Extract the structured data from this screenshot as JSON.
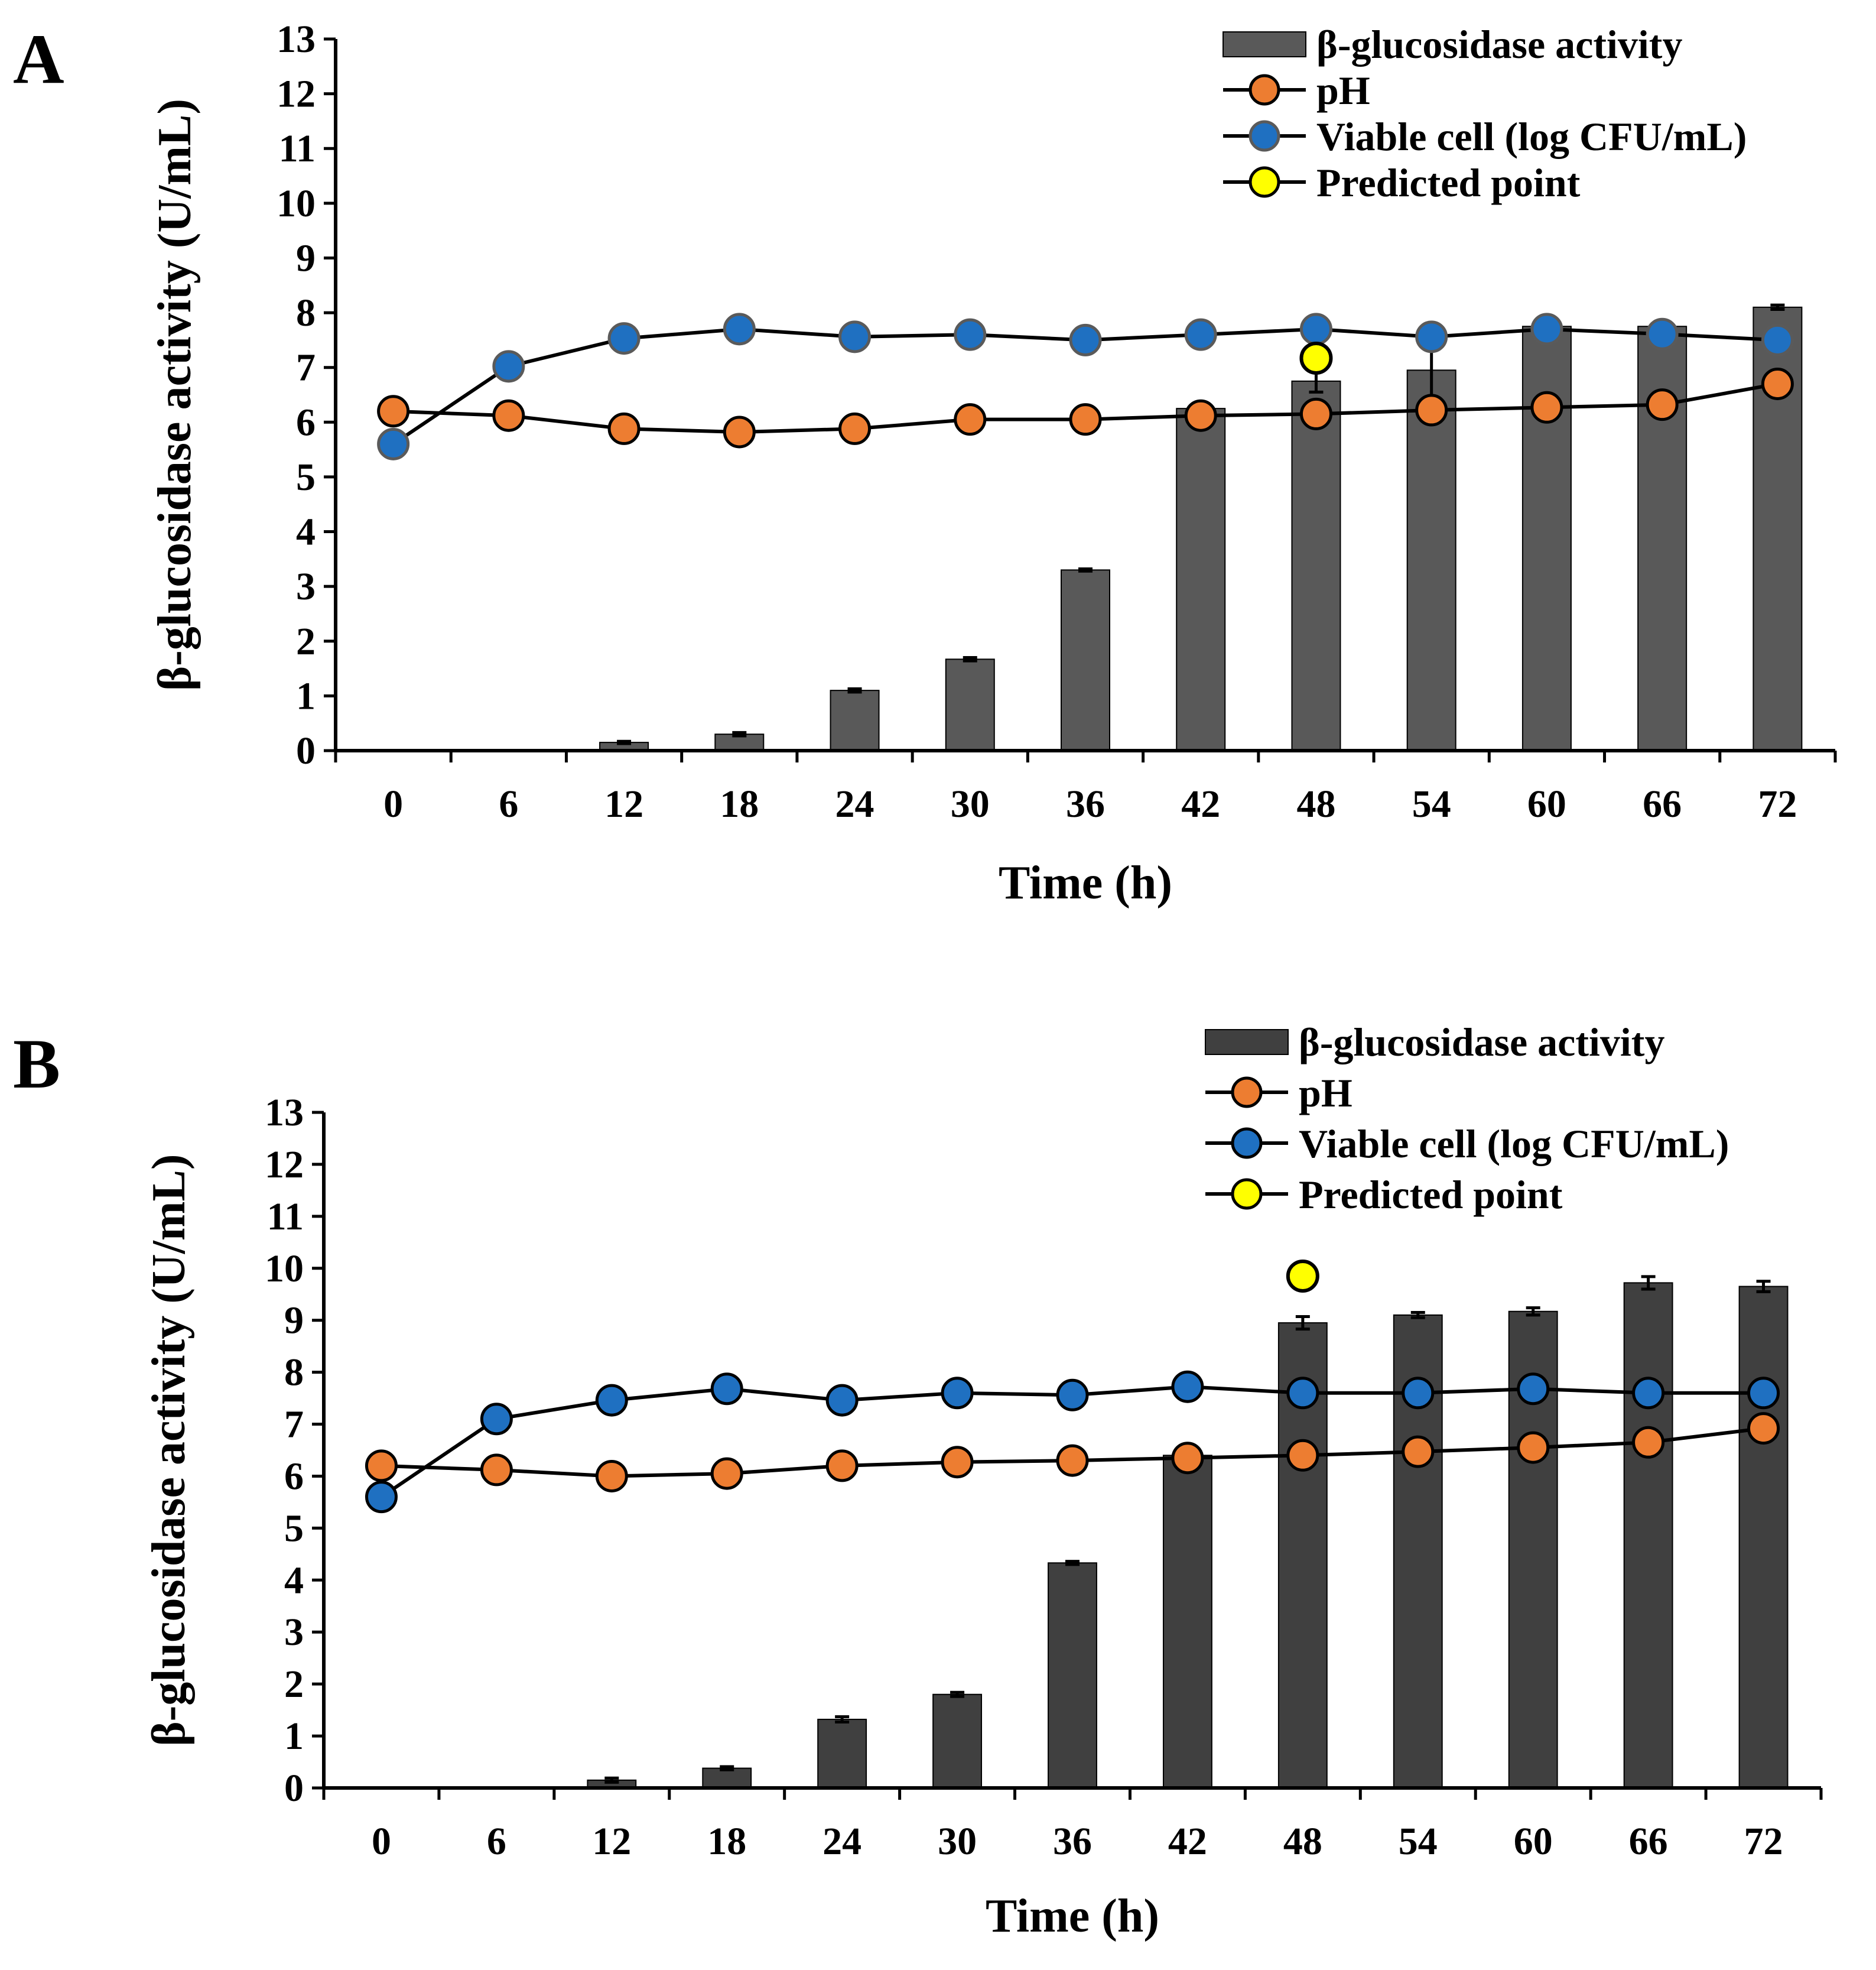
{
  "chart_data": [
    {
      "type": "bar",
      "panel": "A",
      "xlabel": "Time  (h)",
      "ylabel": "β-glucosidase activity (U/mL)",
      "ylim": [
        0,
        13
      ],
      "yticks": [
        "0",
        "1",
        "2",
        "3",
        "4",
        "5",
        "6",
        "7",
        "8",
        "9",
        "10",
        "11",
        "12",
        "13"
      ],
      "categories": [
        "0",
        "6",
        "12",
        "18",
        "24",
        "30",
        "36",
        "42",
        "48",
        "54",
        "60",
        "66",
        "72"
      ],
      "bar_color": "#595959",
      "series": [
        {
          "name": "β-glucosidase activity",
          "kind": "bar",
          "values": [
            0,
            0,
            0.15,
            0.3,
            1.1,
            1.67,
            3.3,
            6.25,
            6.75,
            6.95,
            7.75,
            7.75,
            8.1
          ],
          "errors": [
            0,
            0,
            0.02,
            0.03,
            0.03,
            0.03,
            0.02,
            0.02,
            0.2,
            0.6,
            0.02,
            0.02,
            0.04
          ]
        },
        {
          "name": "pH",
          "kind": "line",
          "color": "#ED7D31",
          "values": [
            6.2,
            6.12,
            5.88,
            5.82,
            5.88,
            6.05,
            6.05,
            6.12,
            6.15,
            6.22,
            6.27,
            6.32,
            6.7
          ]
        },
        {
          "name": "Viable cell (log CFU/mL)",
          "kind": "line",
          "color": "#1F70C1",
          "values": [
            5.6,
            7.02,
            7.53,
            7.7,
            7.56,
            7.6,
            7.5,
            7.6,
            7.7,
            7.56,
            7.7,
            7.61,
            7.5
          ]
        },
        {
          "name": "Predicted point",
          "kind": "point",
          "color": "#FFFF00",
          "x": "48",
          "value": 7.17
        }
      ],
      "legend": "top-right"
    },
    {
      "type": "bar",
      "panel": "B",
      "xlabel": "Time  (h)",
      "ylabel": "β-glucosidase activity (U/mL)",
      "ylim": [
        0,
        13
      ],
      "yticks": [
        "0",
        "1",
        "2",
        "3",
        "4",
        "5",
        "6",
        "7",
        "8",
        "9",
        "10",
        "11",
        "12",
        "13"
      ],
      "categories": [
        "0",
        "6",
        "12",
        "18",
        "24",
        "30",
        "36",
        "42",
        "48",
        "54",
        "60",
        "66",
        "72"
      ],
      "bar_color": "#404040",
      "series": [
        {
          "name": "β-glucosidase activity",
          "kind": "bar",
          "values": [
            0,
            0,
            0.15,
            0.38,
            1.32,
            1.8,
            4.33,
            6.4,
            8.95,
            9.1,
            9.17,
            9.72,
            9.65
          ],
          "errors": [
            0,
            0,
            0.04,
            0.03,
            0.05,
            0.04,
            0.03,
            0.02,
            0.12,
            0.05,
            0.07,
            0.12,
            0.1
          ]
        },
        {
          "name": "pH",
          "kind": "line",
          "color": "#ED7D31",
          "values": [
            6.2,
            6.12,
            6.0,
            6.05,
            6.2,
            6.27,
            6.3,
            6.35,
            6.4,
            6.47,
            6.55,
            6.65,
            6.92
          ]
        },
        {
          "name": "Viable cell (log CFU/mL)",
          "kind": "line",
          "color": "#1F70C1",
          "values": [
            5.6,
            7.1,
            7.46,
            7.68,
            7.46,
            7.6,
            7.56,
            7.72,
            7.6,
            7.6,
            7.68,
            7.6,
            7.6
          ]
        },
        {
          "name": "Predicted point",
          "kind": "point",
          "color": "#FFFF00",
          "x": "48",
          "value": 9.85
        }
      ],
      "legend": "top-right"
    }
  ]
}
